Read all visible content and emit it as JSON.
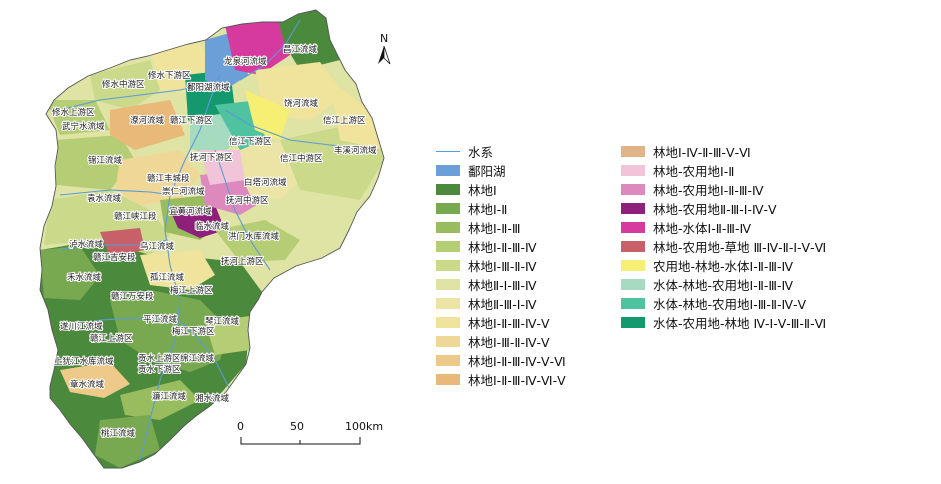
{
  "map": {
    "north_label": "N",
    "scale": {
      "ticks": [
        "0",
        "50",
        "100km"
      ]
    },
    "labels": [
      {
        "id": "changjiang",
        "text": "昌江流域"
      },
      {
        "id": "longquan",
        "text": "龙泉河流域"
      },
      {
        "id": "xiushui-xia",
        "text": "修水下游区"
      },
      {
        "id": "xiushui-zhong",
        "text": "修水中游区"
      },
      {
        "id": "poyang-basin",
        "text": "鄱阳湖流域"
      },
      {
        "id": "raohe",
        "text": "饶河流域"
      },
      {
        "id": "xiushui-shang",
        "text": "修水上游区"
      },
      {
        "id": "liaohe",
        "text": "潦河流域"
      },
      {
        "id": "ganjiang-xia",
        "text": "赣江下游区"
      },
      {
        "id": "wuning",
        "text": "武宁水流域"
      },
      {
        "id": "xinjiang-shang",
        "text": "信江上游区"
      },
      {
        "id": "xinjiang-xia",
        "text": "信江下游区"
      },
      {
        "id": "jinjiang",
        "text": "锦江流域"
      },
      {
        "id": "fenxi",
        "text": "丰溪河流域"
      },
      {
        "id": "fuhe-xia",
        "text": "抚河下游区"
      },
      {
        "id": "xinjiang-zhong",
        "text": "信江中游区"
      },
      {
        "id": "yuanshui",
        "text": "袁水流域"
      },
      {
        "id": "ganjiang-fengcheng",
        "text": "赣江丰城段"
      },
      {
        "id": "chongren",
        "text": "崇仁河流域"
      },
      {
        "id": "baita",
        "text": "白塔河流域"
      },
      {
        "id": "ganjiang-xiajiang",
        "text": "赣江峡江段"
      },
      {
        "id": "yihuang",
        "text": "宜黄河流域"
      },
      {
        "id": "fuhe-zhong",
        "text": "抚河中游区"
      },
      {
        "id": "luoshui",
        "text": "泸水流域"
      },
      {
        "id": "wujiang",
        "text": "乌江流域"
      },
      {
        "id": "linshui",
        "text": "临水流域"
      },
      {
        "id": "hongmen",
        "text": "洪门水库流域"
      },
      {
        "id": "ganjiang-jian",
        "text": "赣江吉安段"
      },
      {
        "id": "heshui",
        "text": "禾水流域"
      },
      {
        "id": "gujiang",
        "text": "孤江流域"
      },
      {
        "id": "fuhe-shang",
        "text": "抚河上游区"
      },
      {
        "id": "meijiang-shang",
        "text": "梅江上游区"
      },
      {
        "id": "ganjiang-wanan",
        "text": "赣江万安段"
      },
      {
        "id": "pingjiang",
        "text": "平江流域"
      },
      {
        "id": "qinjiang",
        "text": "琴江流域"
      },
      {
        "id": "suichuan",
        "text": "遂川江流域"
      },
      {
        "id": "meijiang-xia",
        "text": "梅江下游区"
      },
      {
        "id": "ganjiang-shang",
        "text": "赣江上游区"
      },
      {
        "id": "shangyou",
        "text": "上犹江水库流域"
      },
      {
        "id": "gongshui-shang",
        "text": "贡水上游区"
      },
      {
        "id": "mianjiang",
        "text": "绵江流域"
      },
      {
        "id": "gongshui-xia",
        "text": "贡水下游区"
      },
      {
        "id": "zhangshui",
        "text": "章水流域"
      },
      {
        "id": "lianjiang",
        "text": "濂江流域"
      },
      {
        "id": "xiangshui",
        "text": "湘水流域"
      },
      {
        "id": "taojiang",
        "text": "桃江流域"
      }
    ]
  },
  "legend": {
    "left": [
      {
        "label": "水系",
        "color": "#5b9bd5",
        "kind": "line"
      },
      {
        "label": "鄱阳湖",
        "color": "#6a9fd8",
        "kind": "fill"
      },
      {
        "label": "林地Ⅰ",
        "color": "#4b8a3c",
        "kind": "fill"
      },
      {
        "label": "林地Ⅰ-Ⅱ",
        "color": "#78a850",
        "kind": "fill"
      },
      {
        "label": "林地Ⅰ-Ⅱ-Ⅲ",
        "color": "#98bc5e",
        "kind": "fill"
      },
      {
        "label": "林地Ⅰ-Ⅱ-Ⅲ-Ⅳ",
        "color": "#b5cd74",
        "kind": "fill"
      },
      {
        "label": "林地Ⅰ-Ⅲ-Ⅱ-Ⅳ",
        "color": "#cbd98b",
        "kind": "fill"
      },
      {
        "label": "林地Ⅱ-Ⅰ-Ⅲ-Ⅳ",
        "color": "#dfe3a3",
        "kind": "fill"
      },
      {
        "label": "林地Ⅱ-Ⅲ-Ⅰ-Ⅳ",
        "color": "#ece4a4",
        "kind": "fill"
      },
      {
        "label": "林地Ⅰ-Ⅱ-Ⅲ-Ⅳ-Ⅴ",
        "color": "#f0e39c",
        "kind": "fill"
      },
      {
        "label": "林地Ⅰ-Ⅲ-Ⅱ-Ⅳ-Ⅴ",
        "color": "#efd897",
        "kind": "fill"
      },
      {
        "label": "林地Ⅰ-Ⅱ-Ⅲ-Ⅳ-Ⅴ-Ⅵ",
        "color": "#edc98a",
        "kind": "fill"
      },
      {
        "label": "林地Ⅰ-Ⅱ-Ⅲ-Ⅳ-Ⅵ-Ⅴ",
        "color": "#e8b978",
        "kind": "fill"
      }
    ],
    "right": [
      {
        "label": "林地Ⅰ-Ⅳ-Ⅱ-Ⅲ-Ⅴ-Ⅵ",
        "color": "#e0b487",
        "kind": "fill"
      },
      {
        "label": "林地-农用地Ⅰ-Ⅱ",
        "color": "#f1c4d9",
        "kind": "fill"
      },
      {
        "label": "林地-农用地Ⅰ-Ⅱ-Ⅲ-Ⅳ",
        "color": "#dd89be",
        "kind": "fill"
      },
      {
        "label": "林地-农用地Ⅱ-Ⅲ-Ⅰ-Ⅳ-Ⅴ",
        "color": "#8e1f7a",
        "kind": "fill"
      },
      {
        "label": "林地-水体Ⅰ-Ⅱ-Ⅲ-Ⅳ",
        "color": "#d63a9f",
        "kind": "fill"
      },
      {
        "label": "林地-农用地-草地 Ⅲ-Ⅳ-Ⅱ-Ⅰ-Ⅴ-Ⅵ",
        "color": "#c8606a",
        "kind": "fill"
      },
      {
        "label": "农用地-林地-水体Ⅰ-Ⅱ-Ⅲ-Ⅳ",
        "color": "#f5ef74",
        "kind": "fill"
      },
      {
        "label": "水体-林地-农用地Ⅰ-Ⅱ-Ⅲ-Ⅳ",
        "color": "#a6dbc0",
        "kind": "fill"
      },
      {
        "label": "水体-林地-农用地Ⅰ-Ⅲ-Ⅱ-Ⅳ-Ⅴ",
        "color": "#4fc2a0",
        "kind": "fill"
      },
      {
        "label": "水体-农用地-林地 Ⅳ-Ⅰ-Ⅴ-Ⅲ-Ⅱ-Ⅵ",
        "color": "#14996f",
        "kind": "fill"
      }
    ]
  }
}
